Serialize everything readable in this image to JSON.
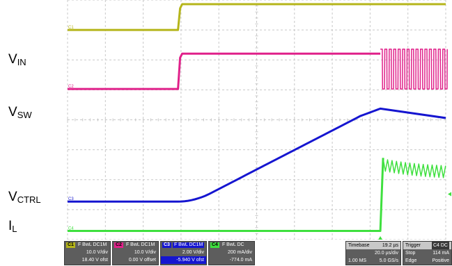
{
  "signal_labels": {
    "vin": {
      "main": "V",
      "sub": "IN"
    },
    "vsw": {
      "main": "V",
      "sub": "SW"
    },
    "vctrl": {
      "main": "V",
      "sub": "CTRL"
    },
    "il": {
      "main": "I",
      "sub": "L"
    }
  },
  "colors": {
    "c1": "#b5b51a",
    "c2": "#e0218a",
    "c3": "#1515d0",
    "c4": "#3ee03e",
    "grid": "#c8c8c8",
    "trigger_marker": "#3ee03e"
  },
  "chart_data": {
    "type": "line",
    "title": "",
    "grid": true,
    "grid_divisions": {
      "x": 10,
      "y": 8
    },
    "x": {
      "unit": "µs",
      "per_div": 20.0,
      "divisions": 10
    },
    "series": [
      {
        "name": "C1",
        "label": "VIN",
        "color": "#b5b51a",
        "shape": "step",
        "before_level_div": 7.0,
        "step_at_div": 2.92,
        "after_level_div": 7.86,
        "ripple_after_div": 0.0
      },
      {
        "name": "C2",
        "label": "VSW",
        "color": "#e0218a",
        "shape": "step-then-switching",
        "before_level_div": 5.03,
        "step_at_div": 2.92,
        "after_level_div": 6.21,
        "switch_start_div": 8.27,
        "switch_low_div": 5.03,
        "switch_high_div": 6.36,
        "switch_period_div": 0.118
      },
      {
        "name": "C3",
        "label": "VCTRL",
        "color": "#1515d0",
        "shape": "ramp",
        "start_level_div": 1.27,
        "ramp_start_div": 2.92,
        "ramp_end_div": 8.27,
        "ramp_end_level_div": 4.47,
        "after_end_level_div": 4.06
      },
      {
        "name": "C4",
        "label": "IL",
        "color": "#3ee03e",
        "shape": "step-then-ripple",
        "before_level_div": 0.29,
        "step_at_div": 8.27,
        "peak_level_div": 2.73,
        "settle_level_div": 2.2,
        "ripple_amp_div": 0.2,
        "ripple_period_div": 0.118
      }
    ]
  },
  "channels": [
    {
      "id": "C1",
      "flags": "F  BwL  DC1M",
      "scale": "10.0 V/div",
      "offset": "18.40 V ofst",
      "color": "#b5b51a"
    },
    {
      "id": "C2",
      "flags": "F  BwL  DC1M",
      "scale": "10.0 V/div",
      "offset": "0.00 V offset",
      "color": "#e0218a"
    },
    {
      "id": "C3",
      "flags": "F  BwL  DC1M",
      "scale": "2.00 V/div",
      "offset": "-5.940 V ofst",
      "color": "#1515d0"
    },
    {
      "id": "C4",
      "flags": "F  BwL  DC",
      "scale": "200 mA/div",
      "offset": "-774.0 mA",
      "color": "#3ee03e"
    }
  ],
  "timebase": {
    "label": "Timebase",
    "delay": "19.2 µs",
    "per_div": "20.0 µs/div",
    "points": "1.00 MS",
    "rate": "5.0 GS/s"
  },
  "trigger": {
    "label": "Trigger",
    "source_badge": "C4 DC",
    "mode": "Stop",
    "level": "114 mA",
    "type": "Edge",
    "slope": "Positive"
  },
  "channel_markers": [
    "C1",
    "C2",
    "C3",
    "C4"
  ]
}
